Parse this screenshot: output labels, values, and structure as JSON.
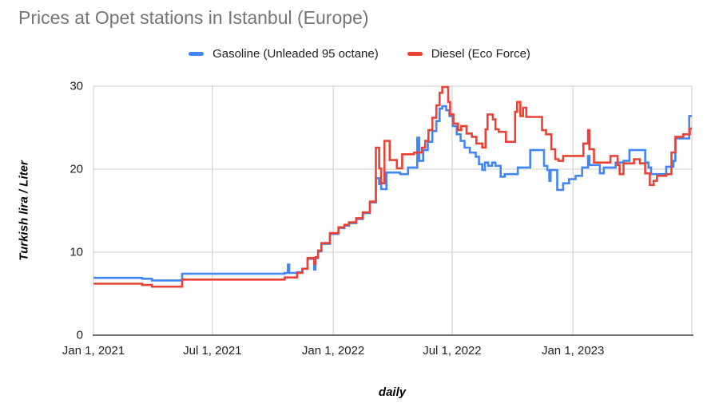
{
  "title": "Prices at Opet stations in Istanbul (Europe)",
  "chart_data": {
    "type": "line",
    "step": true,
    "title": "Prices at Opet stations in Istanbul (Europe)",
    "xlabel": "daily",
    "ylabel": "Turkish lira / Liter",
    "ylim": [
      0,
      30
    ],
    "y_ticks": [
      0,
      10,
      20,
      30
    ],
    "x_range": [
      "2021-01-01",
      "2023-07-01"
    ],
    "x_ticks": [
      {
        "date": "2021-01-01",
        "label": "Jan 1, 2021"
      },
      {
        "date": "2021-07-01",
        "label": "Jul 1, 2021"
      },
      {
        "date": "2022-01-01",
        "label": "Jan 1, 2022"
      },
      {
        "date": "2022-07-01",
        "label": "Jul 1, 2022"
      },
      {
        "date": "2023-01-01",
        "label": "Jan 1, 2023"
      },
      {
        "date": "2023-07-01",
        "label": ""
      }
    ],
    "grid": true,
    "legend_position": "top",
    "colors": {
      "grid": "#cccccc",
      "axis": "#424242",
      "title": "#757575"
    },
    "series": [
      {
        "name": "Gasoline (Unleaded 95 octane)",
        "color": "#4285F4",
        "points": [
          [
            "2021-01-01",
            6.9
          ],
          [
            "2021-03-16",
            6.8
          ],
          [
            "2021-03-31",
            6.6
          ],
          [
            "2021-05-16",
            7.4
          ],
          [
            "2021-10-19",
            7.5
          ],
          [
            "2021-10-24",
            8.5
          ],
          [
            "2021-10-26",
            7.5
          ],
          [
            "2021-11-07",
            7.6
          ],
          [
            "2021-11-15",
            8.0
          ],
          [
            "2021-11-23",
            9.2
          ],
          [
            "2021-12-03",
            7.9
          ],
          [
            "2021-12-05",
            9.3
          ],
          [
            "2021-12-09",
            10.1
          ],
          [
            "2021-12-14",
            11.0
          ],
          [
            "2021-12-27",
            12.2
          ],
          [
            "2022-01-09",
            12.9
          ],
          [
            "2022-01-18",
            13.2
          ],
          [
            "2022-01-25",
            13.5
          ],
          [
            "2022-02-05",
            14.0
          ],
          [
            "2022-02-15",
            14.7
          ],
          [
            "2022-02-26",
            16.0
          ],
          [
            "2022-03-07",
            18.9
          ],
          [
            "2022-03-12",
            18.2
          ],
          [
            "2022-03-15",
            17.6
          ],
          [
            "2022-03-23",
            19.6
          ],
          [
            "2022-04-13",
            19.4
          ],
          [
            "2022-04-25",
            20.2
          ],
          [
            "2022-05-09",
            23.8
          ],
          [
            "2022-05-12",
            21.0
          ],
          [
            "2022-05-18",
            22.3
          ],
          [
            "2022-05-25",
            23.3
          ],
          [
            "2022-06-01",
            24.6
          ],
          [
            "2022-06-07",
            25.8
          ],
          [
            "2022-06-12",
            27.3
          ],
          [
            "2022-06-16",
            27.6
          ],
          [
            "2022-06-22",
            27.1
          ],
          [
            "2022-06-27",
            26.4
          ],
          [
            "2022-07-02",
            25.2
          ],
          [
            "2022-07-08",
            24.2
          ],
          [
            "2022-07-14",
            23.4
          ],
          [
            "2022-07-20",
            22.6
          ],
          [
            "2022-07-28",
            22.0
          ],
          [
            "2022-08-06",
            21.5
          ],
          [
            "2022-08-11",
            20.6
          ],
          [
            "2022-08-16",
            19.9
          ],
          [
            "2022-08-20",
            20.8
          ],
          [
            "2022-08-25",
            20.4
          ],
          [
            "2022-08-31",
            20.8
          ],
          [
            "2022-09-05",
            20.4
          ],
          [
            "2022-09-13",
            19.1
          ],
          [
            "2022-09-19",
            19.4
          ],
          [
            "2022-10-09",
            20.2
          ],
          [
            "2022-10-28",
            22.3
          ],
          [
            "2022-11-18",
            20.4
          ],
          [
            "2022-11-23",
            19.9
          ],
          [
            "2022-11-26",
            18.6
          ],
          [
            "2022-11-28",
            19.9
          ],
          [
            "2022-12-08",
            17.5
          ],
          [
            "2022-12-17",
            18.3
          ],
          [
            "2022-12-26",
            18.8
          ],
          [
            "2023-01-05",
            19.2
          ],
          [
            "2023-01-15",
            20.2
          ],
          [
            "2023-01-24",
            21.6
          ],
          [
            "2023-01-26",
            20.5
          ],
          [
            "2023-02-11",
            19.5
          ],
          [
            "2023-02-17",
            20.2
          ],
          [
            "2023-03-07",
            20.8
          ],
          [
            "2023-03-19",
            21.0
          ],
          [
            "2023-03-28",
            22.3
          ],
          [
            "2023-04-21",
            20.8
          ],
          [
            "2023-04-26",
            20.2
          ],
          [
            "2023-04-30",
            19.4
          ],
          [
            "2023-05-23",
            20.3
          ],
          [
            "2023-06-03",
            21.0
          ],
          [
            "2023-06-06",
            23.7
          ],
          [
            "2023-06-27",
            26.4
          ]
        ]
      },
      {
        "name": "Diesel (Eco Force)",
        "color": "#EA4335",
        "points": [
          [
            "2021-01-01",
            6.2
          ],
          [
            "2021-03-16",
            6.05
          ],
          [
            "2021-03-31",
            5.85
          ],
          [
            "2021-05-16",
            6.7
          ],
          [
            "2021-10-19",
            6.95
          ],
          [
            "2021-11-07",
            7.5
          ],
          [
            "2021-11-15",
            8.0
          ],
          [
            "2021-11-23",
            9.3
          ],
          [
            "2021-12-03",
            8.6
          ],
          [
            "2021-12-05",
            9.4
          ],
          [
            "2021-12-09",
            10.2
          ],
          [
            "2021-12-14",
            11.1
          ],
          [
            "2021-12-27",
            12.3
          ],
          [
            "2022-01-09",
            13.0
          ],
          [
            "2022-01-18",
            13.3
          ],
          [
            "2022-01-25",
            13.6
          ],
          [
            "2022-02-05",
            14.1
          ],
          [
            "2022-02-15",
            14.8
          ],
          [
            "2022-02-26",
            16.1
          ],
          [
            "2022-03-07",
            22.6
          ],
          [
            "2022-03-12",
            20.1
          ],
          [
            "2022-03-15",
            18.3
          ],
          [
            "2022-03-20",
            23.4
          ],
          [
            "2022-03-28",
            21.1
          ],
          [
            "2022-04-08",
            20.1
          ],
          [
            "2022-04-16",
            21.8
          ],
          [
            "2022-05-04",
            22.0
          ],
          [
            "2022-05-16",
            22.6
          ],
          [
            "2022-05-21",
            23.4
          ],
          [
            "2022-05-26",
            24.7
          ],
          [
            "2022-06-01",
            26.2
          ],
          [
            "2022-06-07",
            27.7
          ],
          [
            "2022-06-12",
            29.2
          ],
          [
            "2022-06-16",
            29.9
          ],
          [
            "2022-06-25",
            28.1
          ],
          [
            "2022-06-28",
            26.6
          ],
          [
            "2022-07-03",
            25.5
          ],
          [
            "2022-07-10",
            24.7
          ],
          [
            "2022-07-15",
            25.2
          ],
          [
            "2022-07-23",
            24.3
          ],
          [
            "2022-07-31",
            23.9
          ],
          [
            "2022-08-07",
            23.1
          ],
          [
            "2022-08-16",
            22.6
          ],
          [
            "2022-08-21",
            24.8
          ],
          [
            "2022-08-24",
            26.6
          ],
          [
            "2022-09-01",
            26.0
          ],
          [
            "2022-09-05",
            24.8
          ],
          [
            "2022-09-10",
            24.5
          ],
          [
            "2022-09-21",
            23.3
          ],
          [
            "2022-10-05",
            26.9
          ],
          [
            "2022-10-08",
            28.1
          ],
          [
            "2022-10-13",
            26.4
          ],
          [
            "2022-10-17",
            27.4
          ],
          [
            "2022-10-22",
            26.3
          ],
          [
            "2022-11-15",
            24.7
          ],
          [
            "2022-11-21",
            24.2
          ],
          [
            "2022-11-29",
            22.4
          ],
          [
            "2022-12-05",
            21.2
          ],
          [
            "2022-12-10",
            21.0
          ],
          [
            "2022-12-17",
            21.6
          ],
          [
            "2023-01-17",
            23.1
          ],
          [
            "2023-01-24",
            24.7
          ],
          [
            "2023-01-26",
            22.4
          ],
          [
            "2023-02-02",
            20.8
          ],
          [
            "2023-02-27",
            21.6
          ],
          [
            "2023-03-10",
            20.5
          ],
          [
            "2023-03-13",
            19.4
          ],
          [
            "2023-03-19",
            20.7
          ],
          [
            "2023-04-04",
            21.2
          ],
          [
            "2023-04-13",
            20.7
          ],
          [
            "2023-04-21",
            19.5
          ],
          [
            "2023-04-28",
            18.1
          ],
          [
            "2023-05-04",
            18.6
          ],
          [
            "2023-05-09",
            19.2
          ],
          [
            "2023-05-23",
            19.4
          ],
          [
            "2023-05-31",
            22.0
          ],
          [
            "2023-06-06",
            23.9
          ],
          [
            "2023-06-18",
            24.2
          ],
          [
            "2023-06-28",
            24.9
          ]
        ]
      }
    ]
  }
}
